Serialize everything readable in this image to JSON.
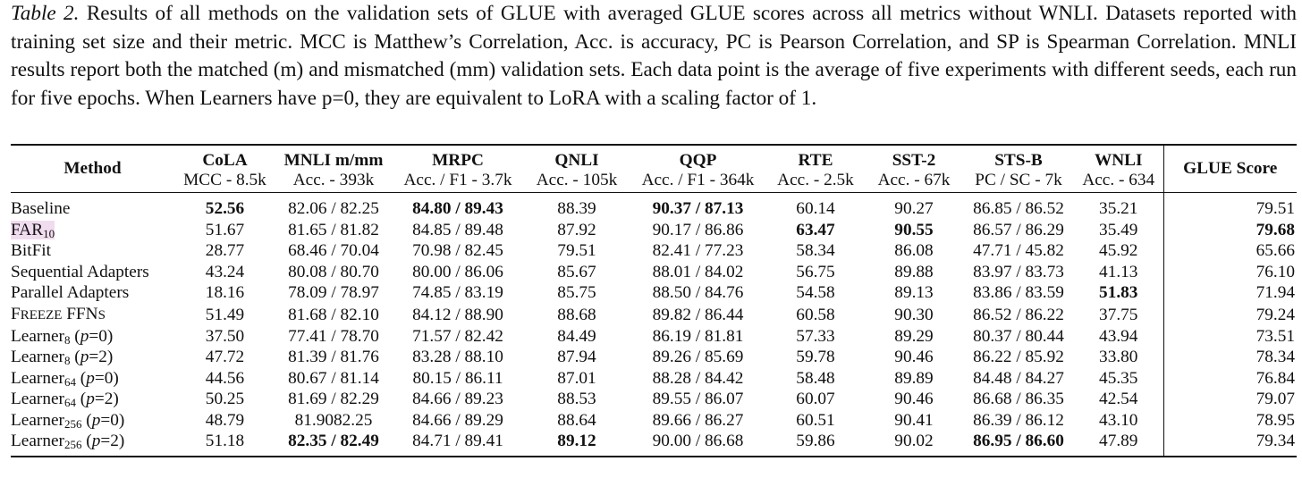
{
  "caption": {
    "label": "Table 2.",
    "text": " Results of all methods on the validation sets of GLUE with averaged GLUE scores across all metrics without WNLI. Datasets reported with training set size and their metric. MCC is Matthew’s Correlation, Acc. is accuracy, PC is Pearson Correlation, and SP is Spearman Correlation. MNLI results report both the matched (m) and mismatched (mm) validation sets. Each data point is the average of five experiments with different seeds, each run for five epochs. When Learners have p=0, they are equivalent to LoRA with a scaling factor of 1."
  },
  "table": {
    "method_header": "Method",
    "glue_header": "GLUE Score",
    "columns": [
      {
        "name": "CoLA",
        "metric": "MCC - 8.5k"
      },
      {
        "name": "MNLI m/mm",
        "metric": "Acc. - 393k"
      },
      {
        "name": "MRPC",
        "metric": "Acc. / F1 - 3.7k"
      },
      {
        "name": "QNLI",
        "metric": "Acc. - 105k"
      },
      {
        "name": "QQP",
        "metric": "Acc. / F1 - 364k"
      },
      {
        "name": "RTE",
        "metric": "Acc. - 2.5k"
      },
      {
        "name": "SST-2",
        "metric": "Acc. - 67k"
      },
      {
        "name": "STS-B",
        "metric": "PC / SC - 7k"
      },
      {
        "name": "WNLI",
        "metric": "Acc. - 634"
      }
    ],
    "rows": [
      {
        "method": "Baseline",
        "values": [
          "52.56",
          "82.06 / 82.25",
          "84.80 / 89.43",
          "88.39",
          "90.37 / 87.13",
          "60.14",
          "90.27",
          "86.85 / 86.52",
          "35.21"
        ],
        "glue": "79.51"
      },
      {
        "method_base": "FAR",
        "method_sub": "10",
        "values": [
          "51.67",
          "81.65 / 81.82",
          "84.85 / 89.48",
          "87.92",
          "90.17 / 86.86",
          "63.47",
          "90.55",
          "86.57 / 86.29",
          "35.49"
        ],
        "glue": "79.68"
      },
      {
        "method": "BitFit",
        "values": [
          "28.77",
          "68.46 / 70.04",
          "70.98 / 82.45",
          "79.51",
          "82.41 / 77.23",
          "58.34",
          "86.08",
          "47.71 / 45.82",
          "45.92"
        ],
        "glue": "65.66"
      },
      {
        "method": "Sequential Adapters",
        "values": [
          "43.24",
          "80.08 / 80.70",
          "80.00 / 86.06",
          "85.67",
          "88.01 / 84.02",
          "56.75",
          "89.88",
          "83.97 / 83.73",
          "41.13"
        ],
        "glue": "76.10"
      },
      {
        "method": "Parallel Adapters",
        "values": [
          "18.16",
          "78.09 / 78.97",
          "74.85 / 83.19",
          "85.75",
          "88.50 / 84.76",
          "54.58",
          "89.13",
          "83.86 / 83.59",
          "51.83"
        ],
        "glue": "71.94"
      },
      {
        "method_sc1": "F",
        "method_sc2": "REEZE",
        "method_sc3": " FFN",
        "method_sc4": "S",
        "values": [
          "51.49",
          "81.68 / 82.10",
          "84.12 / 88.90",
          "88.68",
          "89.82 / 86.44",
          "60.58",
          "90.30",
          "86.52 / 86.22",
          "37.75"
        ],
        "glue": "79.24"
      },
      {
        "method_base": "Learner",
        "method_sub": "8",
        "method_p": "p",
        "method_pval": "=0",
        "values": [
          "37.50",
          "77.41 / 78.70",
          "71.57 / 82.42",
          "84.49",
          "86.19 / 81.81",
          "57.33",
          "89.29",
          "80.37 / 80.44",
          "43.94"
        ],
        "glue": "73.51"
      },
      {
        "method_base": "Learner",
        "method_sub": "8",
        "method_p": "p",
        "method_pval": "=2",
        "values": [
          "47.72",
          "81.39 / 81.76",
          "83.28 / 88.10",
          "87.94",
          "89.26 / 85.69",
          "59.78",
          "90.46",
          "86.22 / 85.92",
          "33.80"
        ],
        "glue": "78.34"
      },
      {
        "method_base": "Learner",
        "method_sub": "64",
        "method_p": "p",
        "method_pval": "=0",
        "values": [
          "44.56",
          "80.67 / 81.14",
          "80.15 / 86.11",
          "87.01",
          "88.28 / 84.42",
          "58.48",
          "89.89",
          "84.48 / 84.27",
          "45.35"
        ],
        "glue": "76.84"
      },
      {
        "method_base": "Learner",
        "method_sub": "64",
        "method_p": "p",
        "method_pval": "=2",
        "values": [
          "50.25",
          "81.69 / 82.29",
          "84.66 / 89.23",
          "88.53",
          "89.55 / 86.07",
          "60.07",
          "90.46",
          "86.68 / 86.35",
          "42.54"
        ],
        "glue": "79.07"
      },
      {
        "method_base": "Learner",
        "method_sub": "256",
        "method_p": "p",
        "method_pval": "=0",
        "values": [
          "48.79",
          "81.9082.25",
          "84.66 / 89.29",
          "88.64",
          "89.66 / 86.27",
          "60.51",
          "90.41",
          "86.39 / 86.12",
          "43.10"
        ],
        "glue": "78.95"
      },
      {
        "method_base": "Learner",
        "method_sub": "256",
        "method_p": "p",
        "method_pval": "=2",
        "values": [
          "51.18",
          "82.35 / 82.49",
          "84.71 / 89.41",
          "89.12",
          "90.00 / 86.68",
          "59.86",
          "90.02",
          "86.95 / 86.60",
          "47.89"
        ],
        "glue": "79.34"
      }
    ],
    "bold_cells": [
      [
        0,
        0
      ],
      [
        0,
        2
      ],
      [
        0,
        4
      ],
      [
        1,
        5
      ],
      [
        1,
        6
      ],
      [
        1,
        9
      ],
      [
        4,
        8
      ],
      [
        11,
        1
      ],
      [
        11,
        3
      ],
      [
        11,
        7
      ]
    ],
    "highlight_color": "#f1dcef"
  }
}
